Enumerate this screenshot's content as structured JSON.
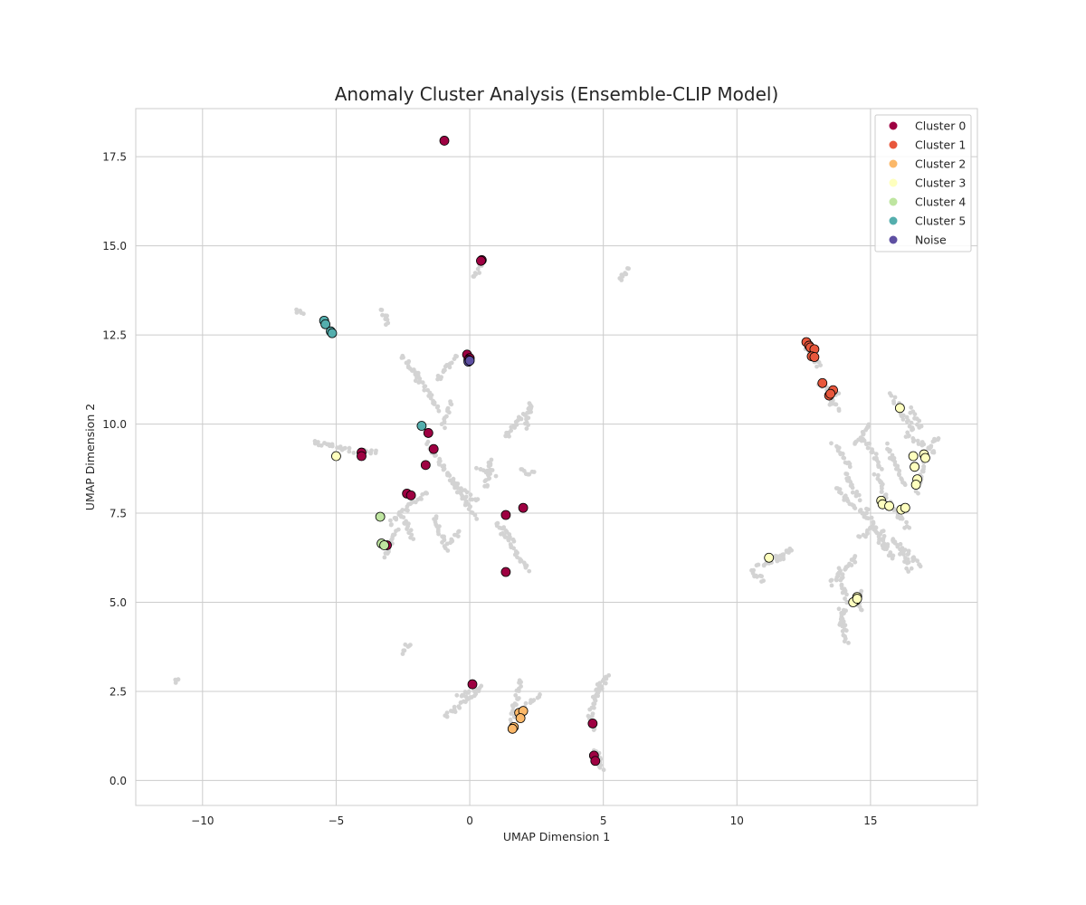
{
  "chart_data": {
    "type": "scatter",
    "title": "Anomaly Cluster Analysis (Ensemble-CLIP Model)",
    "xlabel": "UMAP Dimension 1",
    "ylabel": "UMAP Dimension 2",
    "xlim": [
      -12.5,
      19.0
    ],
    "ylim": [
      -0.7,
      18.85
    ],
    "xticks": [
      -10,
      -5,
      0,
      5,
      10,
      15
    ],
    "xtick_labels": [
      "−10",
      "−5",
      "0",
      "5",
      "10",
      "15"
    ],
    "yticks": [
      0.0,
      2.5,
      5.0,
      7.5,
      10.0,
      12.5,
      15.0,
      17.5
    ],
    "ytick_labels": [
      "0.0",
      "2.5",
      "5.0",
      "7.5",
      "10.0",
      "12.5",
      "15.0",
      "17.5"
    ],
    "grid": true,
    "legend_position": "top-right",
    "background_color": "#d3d3d3",
    "background_segments": [
      [
        [
          -11.0,
          2.75
        ],
        [
          -10.85,
          2.88
        ]
      ],
      [
        [
          -6.5,
          13.2
        ],
        [
          -6.25,
          13.05
        ]
      ],
      [
        [
          -3.3,
          13.2
        ],
        [
          -3.05,
          12.8
        ]
      ],
      [
        [
          -5.8,
          9.5
        ],
        [
          -4.4,
          9.25
        ]
      ],
      [
        [
          -4.1,
          9.2
        ],
        [
          -3.45,
          9.25
        ]
      ],
      [
        [
          -2.5,
          3.6
        ],
        [
          -2.25,
          3.85
        ]
      ],
      [
        [
          -2.5,
          11.9
        ],
        [
          -1.9,
          11.2
        ]
      ],
      [
        [
          -2.0,
          11.5
        ],
        [
          -1.2,
          10.4
        ]
      ],
      [
        [
          -1.2,
          11.25
        ],
        [
          -0.5,
          11.9
        ]
      ],
      [
        [
          -1.0,
          9.9
        ],
        [
          -0.7,
          10.6
        ]
      ],
      [
        [
          -1.6,
          9.5
        ],
        [
          0.2,
          7.4
        ]
      ],
      [
        [
          -3.0,
          7.2
        ],
        [
          -1.6,
          8.1
        ]
      ],
      [
        [
          -2.5,
          7.4
        ],
        [
          -2.1,
          6.8
        ]
      ],
      [
        [
          -0.8,
          8.5
        ],
        [
          0.3,
          7.8
        ]
      ],
      [
        [
          -1.3,
          7.4
        ],
        [
          -0.9,
          6.5
        ]
      ],
      [
        [
          -0.8,
          6.6
        ],
        [
          -0.4,
          7.0
        ]
      ],
      [
        [
          -3.2,
          6.3
        ],
        [
          -2.7,
          7.0
        ]
      ],
      [
        [
          0.2,
          14.1
        ],
        [
          0.45,
          14.6
        ]
      ],
      [
        [
          0.3,
          8.8
        ],
        [
          0.9,
          8.6
        ]
      ],
      [
        [
          0.6,
          8.2
        ],
        [
          0.8,
          9.0
        ]
      ],
      [
        [
          1.0,
          7.2
        ],
        [
          2.2,
          5.9
        ]
      ],
      [
        [
          1.2,
          7.1
        ],
        [
          1.6,
          6.7
        ]
      ],
      [
        [
          1.9,
          8.7
        ],
        [
          2.4,
          8.6
        ]
      ],
      [
        [
          1.3,
          9.6
        ],
        [
          2.3,
          10.5
        ]
      ],
      [
        [
          2.1,
          9.9
        ],
        [
          2.3,
          10.6
        ]
      ],
      [
        [
          -0.9,
          1.8
        ],
        [
          0.4,
          2.6
        ]
      ],
      [
        [
          -0.4,
          2.4
        ],
        [
          0.2,
          2.5
        ]
      ],
      [
        [
          1.5,
          1.5
        ],
        [
          1.9,
          2.8
        ]
      ],
      [
        [
          2.0,
          2.0
        ],
        [
          2.6,
          2.4
        ]
      ],
      [
        [
          4.5,
          1.8
        ],
        [
          4.8,
          2.7
        ]
      ],
      [
        [
          4.7,
          2.3
        ],
        [
          5.2,
          2.95
        ]
      ],
      [
        [
          4.7,
          0.9
        ],
        [
          4.95,
          0.25
        ]
      ],
      [
        [
          4.55,
          1.7
        ],
        [
          4.65,
          1.4
        ]
      ],
      [
        [
          5.6,
          14.05
        ],
        [
          5.9,
          14.35
        ]
      ],
      [
        [
          10.5,
          5.9
        ],
        [
          11.0,
          5.6
        ]
      ],
      [
        [
          10.8,
          6.0
        ],
        [
          12.1,
          6.5
        ]
      ],
      [
        [
          11.2,
          6.1
        ],
        [
          11.8,
          6.25
        ]
      ],
      [
        [
          12.6,
          12.2
        ],
        [
          13.1,
          11.6
        ]
      ],
      [
        [
          13.1,
          11.2
        ],
        [
          13.8,
          10.4
        ]
      ],
      [
        [
          13.5,
          10.6
        ],
        [
          13.75,
          10.9
        ]
      ],
      [
        [
          13.6,
          9.4
        ],
        [
          14.3,
          8.8
        ]
      ],
      [
        [
          13.7,
          8.2
        ],
        [
          14.8,
          7.4
        ]
      ],
      [
        [
          14.4,
          9.4
        ],
        [
          15.0,
          10.0
        ]
      ],
      [
        [
          14.0,
          8.6
        ],
        [
          14.6,
          7.9
        ]
      ],
      [
        [
          14.8,
          9.6
        ],
        [
          15.4,
          8.7
        ]
      ],
      [
        [
          14.8,
          7.6
        ],
        [
          15.5,
          6.5
        ]
      ],
      [
        [
          13.5,
          5.5
        ],
        [
          14.5,
          6.3
        ]
      ],
      [
        [
          13.8,
          5.9
        ],
        [
          14.1,
          5.0
        ]
      ],
      [
        [
          13.9,
          4.8
        ],
        [
          14.1,
          3.9
        ]
      ],
      [
        [
          13.9,
          4.3
        ],
        [
          14.0,
          4.7
        ]
      ],
      [
        [
          14.6,
          4.8
        ],
        [
          14.6,
          5.3
        ]
      ],
      [
        [
          15.4,
          7.0
        ],
        [
          15.8,
          6.2
        ]
      ],
      [
        [
          15.8,
          6.8
        ],
        [
          16.9,
          6.0
        ]
      ],
      [
        [
          15.6,
          9.4
        ],
        [
          16.3,
          8.3
        ]
      ],
      [
        [
          15.2,
          8.6
        ],
        [
          15.8,
          7.6
        ]
      ],
      [
        [
          15.8,
          10.8
        ],
        [
          16.6,
          9.8
        ]
      ],
      [
        [
          16.3,
          9.7
        ],
        [
          17.4,
          9.2
        ]
      ],
      [
        [
          16.5,
          10.4
        ],
        [
          16.9,
          9.9
        ]
      ],
      [
        [
          16.7,
          8.1
        ],
        [
          17.0,
          8.9
        ]
      ],
      [
        [
          15.9,
          7.6
        ],
        [
          16.4,
          7.1
        ]
      ],
      [
        [
          17.2,
          9.4
        ],
        [
          17.6,
          9.6
        ]
      ],
      [
        [
          16.0,
          6.6
        ],
        [
          16.5,
          5.9
        ]
      ],
      [
        [
          14.6,
          6.8
        ],
        [
          15.1,
          7.1
        ]
      ]
    ],
    "series": [
      {
        "name": "Cluster 0",
        "color": "#9e0142",
        "points": [
          [
            -0.95,
            17.95
          ],
          [
            0.45,
            14.6
          ],
          [
            0.42,
            14.58
          ],
          [
            -0.1,
            11.95
          ],
          [
            0.0,
            11.85
          ],
          [
            -0.05,
            11.8
          ],
          [
            -4.05,
            9.2
          ],
          [
            -4.05,
            9.1
          ],
          [
            -1.55,
            9.75
          ],
          [
            -1.35,
            9.3
          ],
          [
            -1.65,
            8.85
          ],
          [
            -2.35,
            8.05
          ],
          [
            -2.2,
            8.0
          ],
          [
            2.0,
            7.65
          ],
          [
            1.35,
            7.45
          ],
          [
            -3.1,
            6.6
          ],
          [
            1.35,
            5.85
          ],
          [
            0.1,
            2.7
          ],
          [
            4.6,
            1.6
          ],
          [
            4.65,
            0.7
          ],
          [
            4.7,
            0.55
          ]
        ]
      },
      {
        "name": "Cluster 1",
        "color": "#e8573c",
        "points": [
          [
            12.6,
            12.3
          ],
          [
            12.7,
            12.2
          ],
          [
            12.75,
            12.15
          ],
          [
            12.9,
            12.1
          ],
          [
            12.8,
            11.9
          ],
          [
            12.9,
            11.88
          ],
          [
            13.2,
            11.15
          ],
          [
            13.6,
            10.95
          ],
          [
            13.45,
            10.8
          ],
          [
            13.5,
            10.85
          ]
        ]
      },
      {
        "name": "Cluster 2",
        "color": "#fbb869",
        "points": [
          [
            1.85,
            1.9
          ],
          [
            2.0,
            1.95
          ],
          [
            1.9,
            1.75
          ],
          [
            1.65,
            1.5
          ],
          [
            1.6,
            1.45
          ]
        ]
      },
      {
        "name": "Cluster 3",
        "color": "#feffbe",
        "points": [
          [
            -5.0,
            9.1
          ],
          [
            16.1,
            10.45
          ],
          [
            16.6,
            9.1
          ],
          [
            17.0,
            9.15
          ],
          [
            17.05,
            9.05
          ],
          [
            16.65,
            8.8
          ],
          [
            16.75,
            8.45
          ],
          [
            16.7,
            8.3
          ],
          [
            15.4,
            7.85
          ],
          [
            15.45,
            7.75
          ],
          [
            15.7,
            7.7
          ],
          [
            16.15,
            7.6
          ],
          [
            16.3,
            7.65
          ],
          [
            11.2,
            6.25
          ],
          [
            14.5,
            5.15
          ],
          [
            14.45,
            5.05
          ],
          [
            14.35,
            5.0
          ],
          [
            14.5,
            5.1
          ]
        ]
      },
      {
        "name": "Cluster 4",
        "color": "#bee5a0",
        "points": [
          [
            -3.35,
            7.4
          ],
          [
            -3.3,
            6.65
          ],
          [
            -3.2,
            6.6
          ]
        ]
      },
      {
        "name": "Cluster 5",
        "color": "#54aead",
        "points": [
          [
            -5.45,
            12.9
          ],
          [
            -5.4,
            12.8
          ],
          [
            -5.2,
            12.6
          ],
          [
            -5.15,
            12.55
          ],
          [
            -1.8,
            9.95
          ]
        ]
      },
      {
        "name": "Noise",
        "color": "#5e4fa2",
        "points": [
          [
            -0.05,
            11.75
          ],
          [
            0.0,
            11.78
          ]
        ]
      }
    ]
  }
}
